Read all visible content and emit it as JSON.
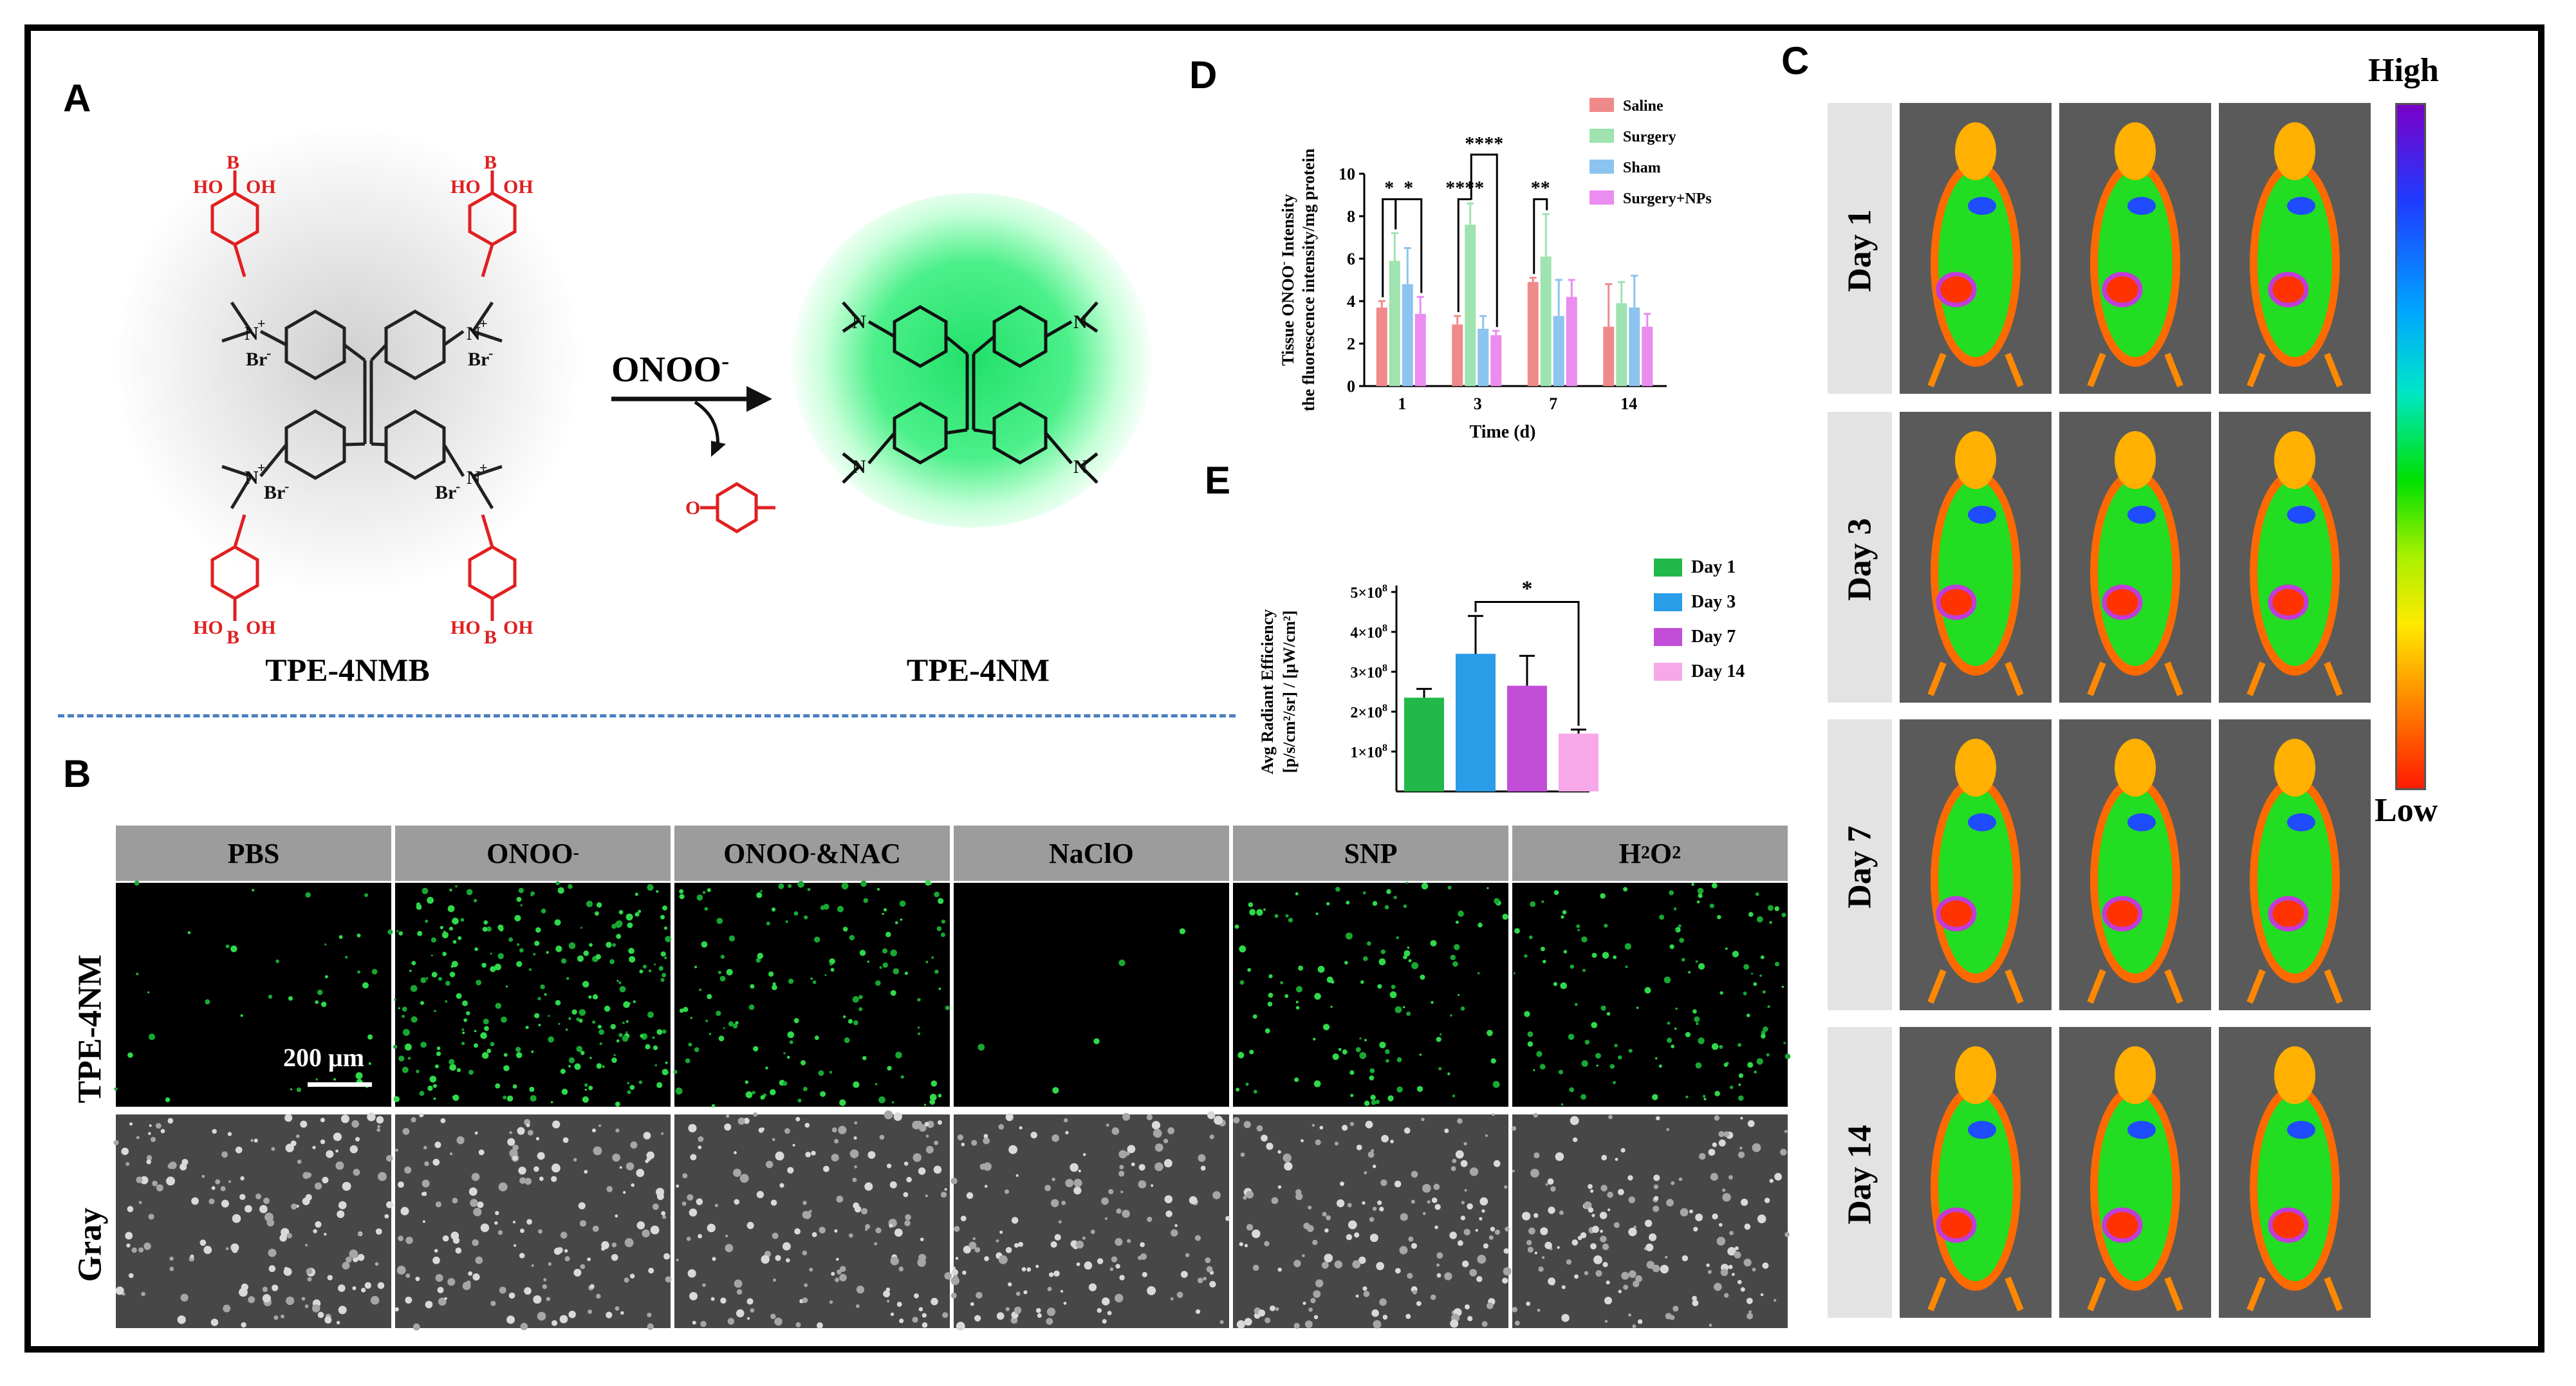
{
  "panel_labels": {
    "a": "A",
    "b": "B",
    "c": "C",
    "d": "D",
    "e": "E"
  },
  "panel_a": {
    "reactant": "TPE-4NMB",
    "product": "TPE-4NM",
    "reagent_main": "ONOO",
    "reagent_sup": "-",
    "boronic": "HO–B–OH",
    "colors": {
      "boronic": "#e02020",
      "bond": "#222222",
      "glow": "#33e67a"
    }
  },
  "panel_b": {
    "headers": [
      {
        "text": "PBS"
      },
      {
        "text": "ONOO",
        "sup": "-"
      },
      {
        "text": "ONOO",
        "sup": "-",
        "tail": "&NAC"
      },
      {
        "text": "NaClO"
      },
      {
        "text": "SNP"
      },
      {
        "text": "H",
        "sub": "2",
        "mid": "O",
        "sub2": "2"
      }
    ],
    "row_labels": [
      "TPE-4NM",
      "Gray"
    ],
    "scale_bar": "200 μm",
    "fluorescence_density": [
      0.15,
      0.95,
      0.55,
      0.02,
      0.45,
      0.5
    ]
  },
  "panel_c": {
    "days": [
      "Day 1",
      "Day 3",
      "Day 7",
      "Day 14"
    ],
    "colorbar_high": "High",
    "colorbar_low": "Low"
  },
  "chart_data": [
    {
      "panel": "D",
      "type": "bar",
      "ylabel_line1": "Tissue ONOO",
      "ylabel_sup": "-",
      "ylabel_line1_tail": " Intensity",
      "ylabel_line2": "the fluorescence intensity/mg protein",
      "xlabel": "Time (d)",
      "categories": [
        "1",
        "3",
        "7",
        "14"
      ],
      "ylim": [
        0,
        10
      ],
      "yticks": [
        "0",
        "2",
        "4",
        "6",
        "8",
        "10"
      ],
      "series": [
        {
          "name": "Saline",
          "color": "#f08a8a",
          "values": [
            3.7,
            2.9,
            4.9,
            2.8
          ],
          "err": [
            0.3,
            0.4,
            0.2,
            2.0
          ]
        },
        {
          "name": "Surgery",
          "color": "#9ee3b0",
          "values": [
            5.9,
            7.6,
            6.1,
            3.9
          ],
          "err": [
            1.3,
            1.0,
            2.0,
            1.0
          ]
        },
        {
          "name": "Sham",
          "color": "#8cc4ef",
          "values": [
            4.8,
            2.7,
            3.3,
            3.7
          ],
          "err": [
            1.7,
            0.6,
            1.7,
            1.5
          ]
        },
        {
          "name": "Surgery+NPs",
          "color": "#ea8cf0",
          "values": [
            3.4,
            2.4,
            4.2,
            2.8
          ],
          "err": [
            0.8,
            0.2,
            0.8,
            0.6
          ]
        }
      ],
      "significance": [
        "*",
        "*",
        "****",
        "****",
        "**"
      ],
      "legend": "top-right"
    },
    {
      "panel": "E",
      "type": "bar",
      "ylabel_line1": "Avg Radiant Efficiency",
      "ylabel_line2": "[p/s/cm²/sr] / [μW/cm²]",
      "categories": [
        "Day 1",
        "Day 3",
        "Day 7",
        "Day 14"
      ],
      "ylim": [
        0,
        5
      ],
      "ytick_values": [
        1,
        2,
        3,
        4,
        5
      ],
      "ytick_base": "×10",
      "ytick_exp": "8",
      "values": [
        2.35,
        3.45,
        2.65,
        1.45
      ],
      "err": [
        0.22,
        0.95,
        0.75,
        0.1
      ],
      "colors": [
        "#22b94a",
        "#2a9de8",
        "#c24ed8",
        "#f7a8e8"
      ],
      "significance": [
        "*"
      ],
      "legend": "right"
    }
  ]
}
